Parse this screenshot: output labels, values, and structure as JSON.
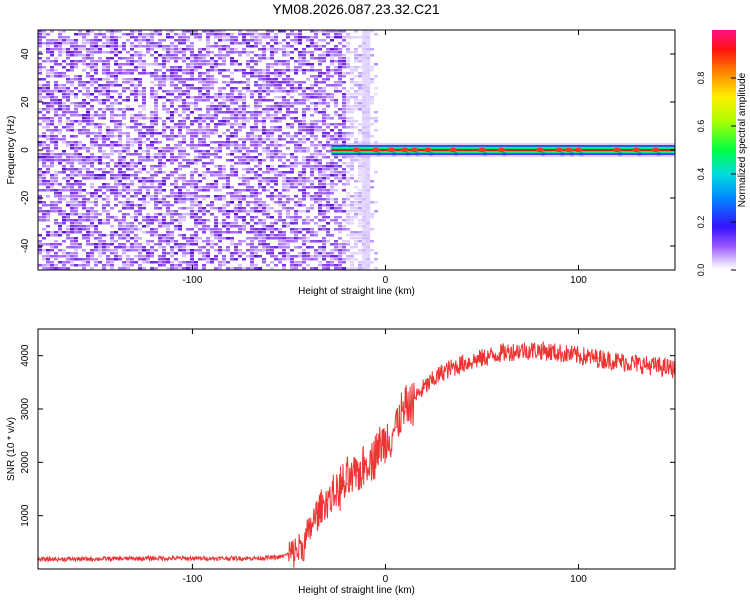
{
  "figure": {
    "title": "YM08.2026.087.23.32.C21"
  },
  "chart_data": [
    {
      "type": "heatmap",
      "title": "YM08.2026.087.23.32.C21",
      "xlabel": "Height of straight line (km)",
      "ylabel": "Frequency (Hz)",
      "xlim": [
        -180,
        150
      ],
      "ylim": [
        -50,
        50
      ],
      "xticks": [
        -100,
        0,
        100
      ],
      "xtick_labels": [
        "-100",
        "0",
        "100"
      ],
      "yticks": [
        -40,
        -20,
        0,
        20,
        40
      ],
      "ytick_labels": [
        "-40",
        "-20",
        "0",
        "20",
        "40"
      ],
      "noise_region_x": [
        -180,
        -15
      ],
      "signal_band": {
        "frequency_hz": 0,
        "x_start": -28,
        "x_end": 150,
        "halfwidth_hz": 1.2
      },
      "hot_spots_x": [
        -15,
        -5,
        3,
        10,
        15,
        22,
        35,
        50,
        60,
        80,
        90,
        95,
        100,
        120,
        130,
        140
      ],
      "colorbar": {
        "label": "Normalized spectral amplitude",
        "range": [
          0,
          1
        ],
        "ticks": [
          0,
          0.2,
          0.4,
          0.6,
          0.8
        ],
        "tick_labels": [
          "0.0",
          "0.2",
          "0.4",
          "0.6",
          "0.8"
        ]
      }
    },
    {
      "type": "line",
      "xlabel": "Height of straight line (km)",
      "ylabel": "SNR (10 * v/v)",
      "xlim": [
        -180,
        150
      ],
      "ylim": [
        0,
        4500
      ],
      "xticks": [
        -100,
        0,
        100
      ],
      "xtick_labels": [
        "-100",
        "0",
        "100"
      ],
      "yticks": [
        1000,
        2000,
        3000,
        4000
      ],
      "ytick_labels": [
        "1000",
        "2000",
        "3000",
        "4000"
      ],
      "color": "#ee3333",
      "series": [
        {
          "name": "SNR",
          "x": [
            -180,
            -150,
            -120,
            -90,
            -70,
            -55,
            -48,
            -42,
            -38,
            -34,
            -30,
            -25,
            -20,
            -15,
            -10,
            -5,
            0,
            5,
            10,
            15,
            20,
            25,
            30,
            40,
            50,
            60,
            70,
            80,
            90,
            100,
            110,
            120,
            130,
            140,
            150
          ],
          "y": [
            180,
            190,
            200,
            200,
            200,
            220,
            300,
            450,
            850,
            1100,
            1300,
            1450,
            1600,
            1750,
            2000,
            2200,
            2400,
            2650,
            2950,
            3200,
            3400,
            3550,
            3700,
            3850,
            3950,
            4050,
            4100,
            4100,
            4050,
            4000,
            3950,
            3900,
            3850,
            3800,
            3750
          ]
        }
      ]
    }
  ]
}
